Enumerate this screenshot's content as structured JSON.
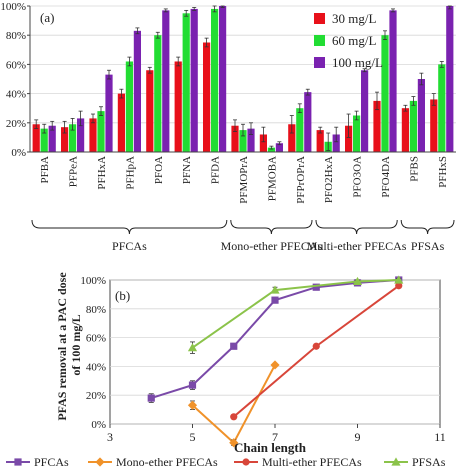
{
  "chart_data": [
    {
      "type": "bar",
      "panel_label": "(a)",
      "y_tick_labels": [
        "0%",
        "20%",
        "40%",
        "60%",
        "80%",
        "100%"
      ],
      "ylim": [
        0,
        100
      ],
      "categories": [
        "PFBA",
        "PFPeA",
        "PFHxA",
        "PFHpA",
        "PFOA",
        "PFNA",
        "PFDA",
        "PFMOPrA",
        "PFMOBA",
        "PFPrOPrA",
        "PFO2HxA",
        "PFO3OA",
        "PFO4DA",
        "PFBS",
        "PFHxS"
      ],
      "series": [
        {
          "name": "30 mg/L",
          "color": "#e8101a",
          "values": [
            19,
            17,
            23,
            40,
            56,
            62,
            75,
            18,
            12,
            19,
            15,
            18,
            35,
            30,
            36
          ],
          "errors": [
            3,
            4,
            3,
            3,
            2,
            3,
            3,
            4,
            5,
            6,
            2,
            8,
            6,
            2,
            4
          ]
        },
        {
          "name": "60 mg/L",
          "color": "#22dd33",
          "values": [
            16,
            19,
            28,
            62,
            80,
            95,
            98,
            15,
            3,
            30,
            7,
            25,
            80,
            35,
            60
          ],
          "errors": [
            3,
            4,
            3,
            3,
            2,
            2,
            2,
            4,
            1,
            3,
            6,
            3,
            3,
            3,
            2
          ]
        },
        {
          "name": "100 mg/L",
          "color": "#7a22b0",
          "values": [
            18,
            23,
            53,
            83,
            97,
            98,
            100,
            16,
            6,
            41,
            12,
            56,
            97,
            50,
            100
          ],
          "errors": [
            3,
            5,
            3,
            2,
            1,
            1,
            1,
            4,
            1,
            2,
            5,
            1,
            1,
            4,
            2
          ]
        }
      ],
      "groups": [
        {
          "label": "PFCAs",
          "start": 0,
          "end": 6
        },
        {
          "label": "Mono-ether PFECAs",
          "start": 7,
          "end": 9
        },
        {
          "label": "Multi-ether PFECAs",
          "start": 10,
          "end": 12
        },
        {
          "label": "PFSAs",
          "start": 13,
          "end": 14
        }
      ],
      "legend_position": "top-right"
    },
    {
      "type": "line",
      "panel_label": "(b)",
      "xlabel": "Chain length",
      "ylabel": "PFAS removal at a PAC dose of 100 mg/L",
      "ylabel_lines": [
        "PFAS removal at a PAC dose",
        "of 100 mg/L"
      ],
      "xlim": [
        3,
        11
      ],
      "ylim": [
        0,
        100
      ],
      "x_ticks": [
        3,
        5,
        7,
        9,
        11
      ],
      "y_tick_labels": [
        "100%",
        "80%",
        "60%",
        "40%",
        "20%",
        "0%"
      ],
      "y_tick_values": [
        100,
        80,
        60,
        40,
        20,
        0
      ],
      "series": [
        {
          "name": "PFCAs",
          "color": "#7a4aa8",
          "marker": "square",
          "x": [
            4,
            5,
            6,
            7,
            8,
            9,
            10
          ],
          "y": [
            18,
            27,
            54,
            86,
            95,
            98,
            100
          ],
          "errors": [
            3,
            3,
            2,
            2,
            1,
            1,
            1
          ]
        },
        {
          "name": "Mono-ether PFECAs",
          "color": "#f0922a",
          "marker": "diamond",
          "x": [
            5,
            6,
            7
          ],
          "y": [
            13,
            -13,
            41
          ],
          "errors": [
            3,
            2,
            1
          ]
        },
        {
          "name": "Multi-ether PFECAs",
          "color": "#d8463a",
          "marker": "circle",
          "x": [
            6,
            8,
            10
          ],
          "y": [
            5,
            54,
            96
          ],
          "errors": [
            1,
            1,
            1
          ]
        },
        {
          "name": "PFSAs",
          "color": "#8bc34a",
          "marker": "triangle",
          "x": [
            5,
            7,
            9,
            10
          ],
          "y": [
            53,
            93,
            99,
            100
          ],
          "errors": [
            4,
            2,
            1,
            1
          ]
        }
      ],
      "legend_position": "bottom"
    }
  ]
}
